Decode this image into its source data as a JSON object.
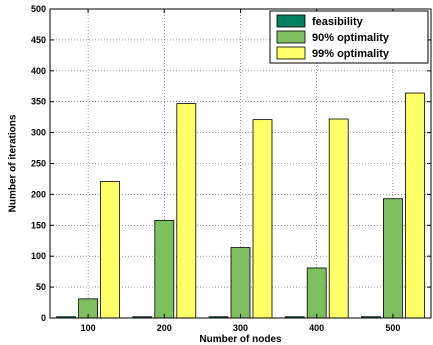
{
  "chart_data": {
    "type": "bar",
    "categories": [
      "100",
      "200",
      "300",
      "400",
      "500"
    ],
    "series": [
      {
        "name": "feasibility",
        "color": "#007f5f",
        "values": [
          2,
          2,
          2,
          2,
          2
        ]
      },
      {
        "name": "90% optimality",
        "color": "#7fbf5f",
        "values": [
          31,
          158,
          114,
          81,
          193
        ]
      },
      {
        "name": "99% optimality",
        "color": "#ffff66",
        "values": [
          221,
          347,
          321,
          322,
          364
        ]
      }
    ],
    "xlabel": "Number of nodes",
    "ylabel": "Number of iterations",
    "ylim": [
      0,
      500
    ],
    "yticks": [
      0,
      50,
      100,
      150,
      200,
      250,
      300,
      350,
      400,
      450,
      500
    ],
    "grid": true,
    "legend_position": "top-right"
  }
}
